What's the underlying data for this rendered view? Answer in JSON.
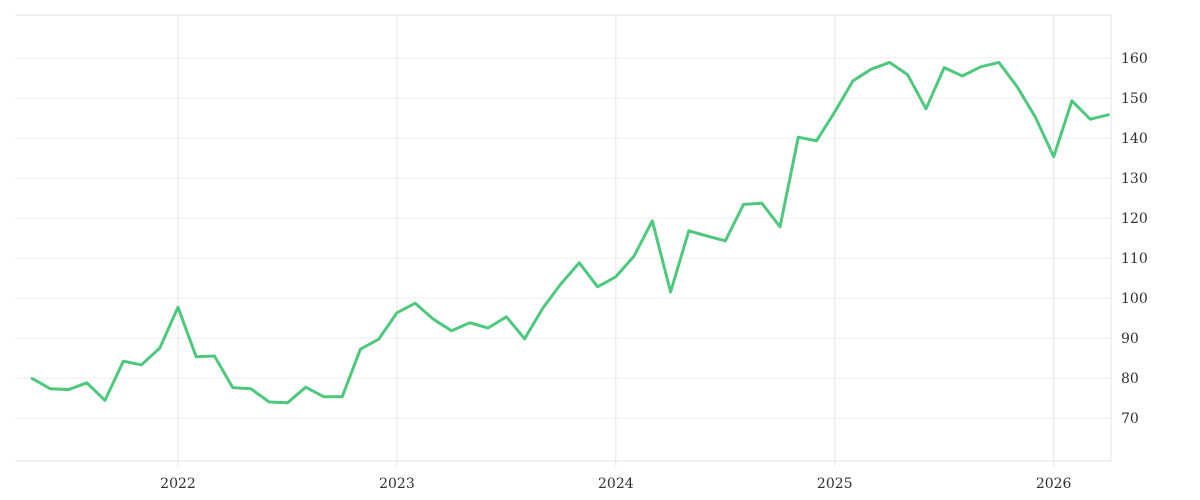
{
  "chart_data": {
    "type": "line",
    "title": "",
    "xlabel": "",
    "ylabel": "",
    "legend": false,
    "grid": true,
    "y_axis_side": "right",
    "ylim": [
      59,
      171
    ],
    "x": [
      "2021-05",
      "2021-06",
      "2021-07",
      "2021-08",
      "2021-09",
      "2021-10",
      "2021-11",
      "2021-12",
      "2022-01",
      "2022-02",
      "2022-03",
      "2022-04",
      "2022-05",
      "2022-06",
      "2022-07",
      "2022-08",
      "2022-09",
      "2022-10",
      "2022-11",
      "2022-12",
      "2023-01",
      "2023-02",
      "2023-03",
      "2023-04",
      "2023-05",
      "2023-06",
      "2023-07",
      "2023-08",
      "2023-09",
      "2023-10",
      "2023-11",
      "2023-12",
      "2024-01",
      "2024-02",
      "2024-03",
      "2024-04",
      "2024-05",
      "2024-06",
      "2024-07",
      "2024-08",
      "2024-09",
      "2024-10",
      "2024-11",
      "2024-12",
      "2025-01",
      "2025-02",
      "2025-03",
      "2025-04",
      "2025-05",
      "2025-06",
      "2025-07",
      "2025-08",
      "2025-09",
      "2025-10",
      "2025-11",
      "2025-12",
      "2026-01",
      "2026-02",
      "2026-03",
      "2026-04"
    ],
    "values": [
      79.9,
      77.3,
      77.1,
      78.8,
      74.4,
      84.2,
      83.3,
      87.5,
      97.7,
      85.3,
      85.5,
      77.6,
      77.3,
      74.0,
      73.8,
      77.7,
      75.3,
      75.3,
      87.2,
      89.7,
      96.3,
      98.7,
      94.7,
      91.8,
      93.8,
      92.5,
      95.3,
      89.8,
      97.5,
      103.6,
      108.8,
      102.8,
      105.3,
      110.5,
      119.3,
      101.5,
      116.8,
      115.5,
      114.3,
      123.4,
      123.7,
      117.8,
      140.2,
      139.3,
      146.5,
      154.3,
      157.2,
      158.9,
      155.8,
      147.3,
      157.6,
      155.5,
      157.8,
      158.9,
      152.8,
      145.2,
      135.3,
      149.3,
      144.7,
      145.8
    ],
    "x_tick_labels": [
      "2022",
      "2023",
      "2024",
      "2025",
      "2026"
    ],
    "y_tick_labels": [
      "70",
      "80",
      "90",
      "100",
      "110",
      "120",
      "130",
      "140",
      "150",
      "160"
    ],
    "line_color": "#4ec87d",
    "grid_color": "#ededed",
    "year_line_color": "#e7e7e7",
    "frame_color": "#e4e4e4",
    "tick_label_color": "#2f2f2f",
    "background_color": "#ffffff"
  }
}
